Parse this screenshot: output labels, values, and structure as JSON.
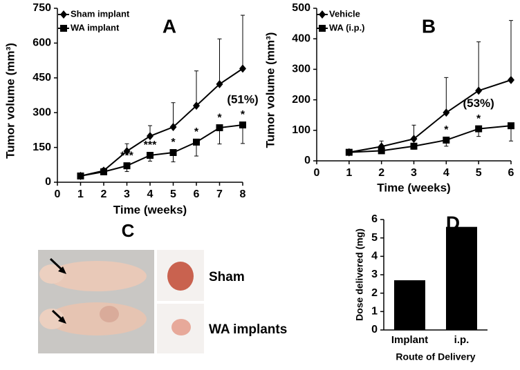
{
  "chart_data": [
    {
      "type": "line",
      "panel": "A",
      "x_label": "Time (weeks)",
      "y_label": "Tumor volume (mm³)",
      "xlim": [
        0,
        8
      ],
      "xticks": [
        0,
        1,
        2,
        3,
        4,
        5,
        6,
        7,
        8
      ],
      "ylim": [
        0,
        750
      ],
      "yticks": [
        0,
        150,
        300,
        450,
        600,
        750
      ],
      "legend": "upper left",
      "series": [
        {
          "name": "Sham implant",
          "color": "#000000",
          "marker": "diamond",
          "error_side": "up",
          "x": [
            1,
            2,
            3,
            4,
            5,
            6,
            7,
            8
          ],
          "values": [
            27,
            50,
            134,
            199,
            238,
            330,
            423,
            490
          ],
          "errors": [
            5,
            10,
            32,
            45,
            105,
            150,
            195,
            230
          ]
        },
        {
          "name": "WA implant",
          "color": "#000000",
          "marker": "square",
          "error_side": "down",
          "x": [
            1,
            2,
            3,
            4,
            5,
            6,
            7,
            8
          ],
          "values": [
            27,
            45,
            71,
            116,
            128,
            173,
            235,
            247
          ],
          "errors": [
            5,
            8,
            25,
            25,
            40,
            60,
            70,
            80
          ]
        }
      ],
      "annotations": [
        {
          "x": 3,
          "text": "***"
        },
        {
          "x": 4,
          "text": "***"
        },
        {
          "x": 5,
          "text": "*"
        },
        {
          "x": 6,
          "text": "*"
        },
        {
          "x": 7,
          "text": "*"
        },
        {
          "x": 8,
          "text": "*"
        },
        {
          "x": 8,
          "text": "(51%)"
        }
      ]
    },
    {
      "type": "line",
      "panel": "B",
      "x_label": "Time (weeks)",
      "y_label": "Tumor volume (mm³)",
      "xlim": [
        0,
        6
      ],
      "xticks": [
        0,
        1,
        2,
        3,
        4,
        5,
        6
      ],
      "ylim": [
        0,
        500
      ],
      "yticks": [
        0,
        100,
        200,
        300,
        400,
        500
      ],
      "legend": "upper left",
      "series": [
        {
          "name": "Vehicle",
          "color": "#000000",
          "marker": "diamond",
          "error_side": "up",
          "x": [
            1,
            2,
            3,
            4,
            5,
            6
          ],
          "values": [
            28,
            47,
            72,
            158,
            230,
            265
          ],
          "errors": [
            5,
            18,
            45,
            115,
            160,
            195
          ]
        },
        {
          "name": "WA (i.p.)",
          "color": "#000000",
          "marker": "square",
          "error_side": "down",
          "x": [
            1,
            2,
            3,
            4,
            5,
            6
          ],
          "values": [
            28,
            33,
            48,
            68,
            105,
            115
          ],
          "errors": [
            5,
            8,
            10,
            20,
            25,
            50
          ]
        }
      ],
      "annotations": [
        {
          "x": 4,
          "text": "*"
        },
        {
          "x": 5,
          "text": "*"
        },
        {
          "x": 5,
          "text": "(53%)"
        }
      ]
    },
    {
      "type": "bar",
      "panel": "D",
      "x_label": "Route of Delivery",
      "y_label": "Dose delivered (mg)",
      "categories": [
        "Implant",
        "i.p."
      ],
      "values": [
        2.7,
        5.6
      ],
      "color": "#000000",
      "ylim": [
        0,
        6
      ],
      "yticks": [
        0,
        1,
        2,
        3,
        4,
        5,
        6
      ]
    }
  ],
  "photo": {
    "panel": "C",
    "labels": [
      "Sham",
      "WA implants"
    ]
  }
}
